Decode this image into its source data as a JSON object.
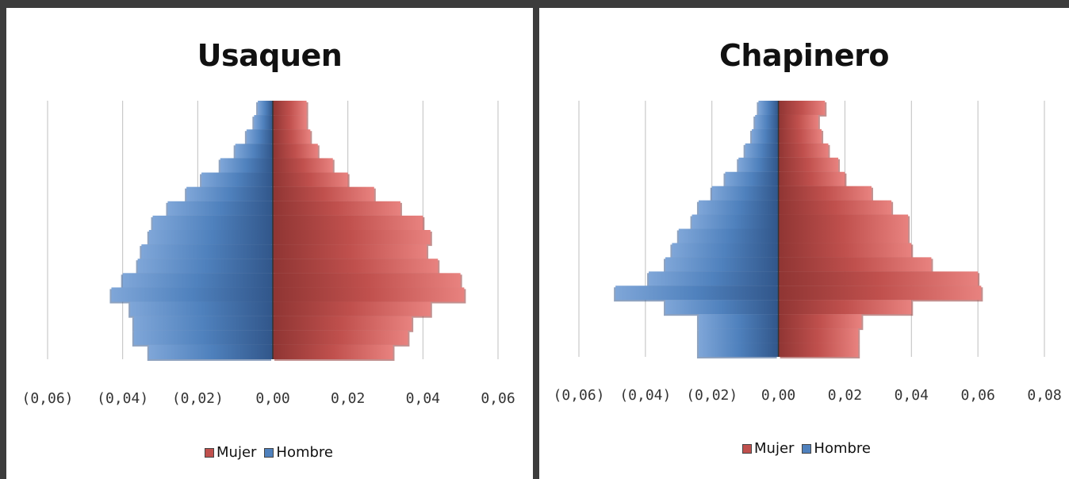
{
  "colors": {
    "mujer": "#c0504d",
    "mujer_light": "#e8827f",
    "mujer_dark": "#8f3533",
    "hombre": "#4f81bd",
    "hombre_light": "#7fa6d8",
    "hombre_dark": "#31568a",
    "grid": "#bfbfbf"
  },
  "chart_data": [
    {
      "type": "bar",
      "orientation": "horizontal-population-pyramid",
      "title": "Usaquen",
      "xlim": [
        -0.06,
        0.06
      ],
      "xticks": [
        -0.06,
        -0.04,
        -0.02,
        0.0,
        0.02,
        0.04,
        0.06
      ],
      "xtick_labels": [
        "(0,06)",
        "(0,04)",
        "(0,02)",
        "0,00",
        "0,02",
        "0,04",
        "0,06"
      ],
      "grid": true,
      "legend": "bottom",
      "series": [
        {
          "name": "Mujer",
          "values": [
            0.009,
            0.009,
            0.01,
            0.012,
            0.016,
            0.02,
            0.027,
            0.034,
            0.04,
            0.042,
            0.041,
            0.044,
            0.05,
            0.051,
            0.042,
            0.037,
            0.036,
            0.032
          ]
        },
        {
          "name": "Hombre",
          "values": [
            -0.004,
            -0.005,
            -0.007,
            -0.01,
            -0.014,
            -0.019,
            -0.023,
            -0.028,
            -0.032,
            -0.033,
            -0.035,
            -0.036,
            -0.04,
            -0.043,
            -0.038,
            -0.037,
            -0.037,
            -0.033
          ]
        }
      ]
    },
    {
      "type": "bar",
      "orientation": "horizontal-population-pyramid",
      "title": "Chapinero",
      "xlim": [
        -0.06,
        0.08
      ],
      "xticks": [
        -0.06,
        -0.04,
        -0.02,
        0.0,
        0.02,
        0.04,
        0.06,
        0.08
      ],
      "xtick_labels": [
        "(0,06)",
        "(0,04)",
        "(0,02)",
        "0,00",
        "0,02",
        "0,04",
        "0,06",
        "0,08"
      ],
      "grid": true,
      "legend": "bottom",
      "series": [
        {
          "name": "Mujer",
          "values": [
            0.014,
            0.012,
            0.013,
            0.015,
            0.018,
            0.02,
            0.028,
            0.034,
            0.039,
            0.039,
            0.04,
            0.046,
            0.06,
            0.061,
            0.04,
            0.025,
            0.024,
            0.024
          ]
        },
        {
          "name": "Hombre",
          "values": [
            -0.006,
            -0.007,
            -0.008,
            -0.01,
            -0.012,
            -0.016,
            -0.02,
            -0.024,
            -0.026,
            -0.03,
            -0.032,
            -0.034,
            -0.039,
            -0.049,
            -0.034,
            -0.024,
            -0.024,
            -0.024
          ]
        }
      ]
    }
  ]
}
